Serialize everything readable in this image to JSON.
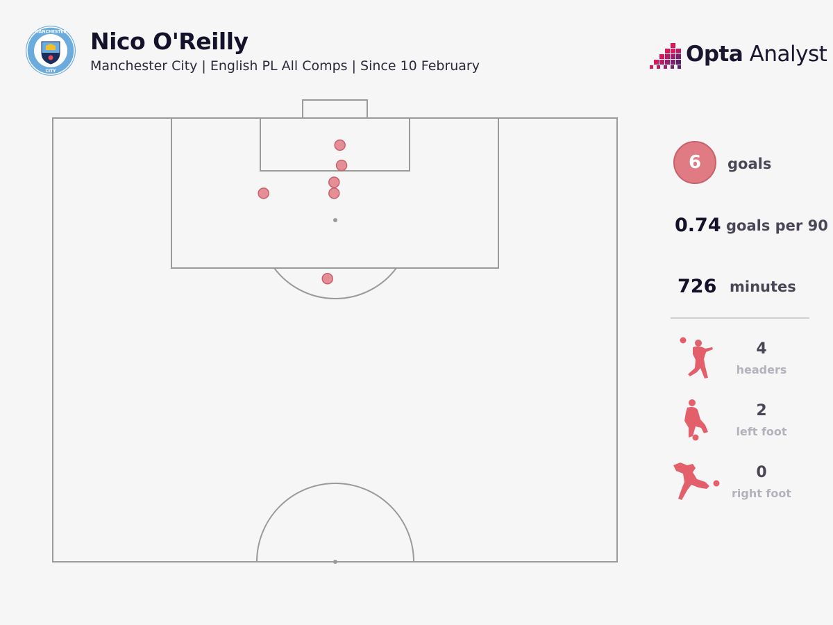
{
  "header": {
    "title": "Nico O'Reilly",
    "subtitle": "Manchester City | English PL All Comps | Since 10 February",
    "crest_text_top": "MANCHESTER",
    "crest_text_bottom": "CITY",
    "brand_bold": "Opta",
    "brand_light": " Analyst"
  },
  "stats": {
    "goals_value": "6",
    "goals_label": "goals",
    "per90_value": "0.74",
    "per90_label": "goals per 90",
    "minutes_value": "726",
    "minutes_label": "minutes",
    "breakdown": [
      {
        "value": "4",
        "label": "headers",
        "icon": "header-icon"
      },
      {
        "value": "2",
        "label": "left foot",
        "icon": "left-foot-icon"
      },
      {
        "value": "0",
        "label": "right foot",
        "icon": "right-foot-icon"
      }
    ]
  },
  "colors": {
    "shot_fill": "#e07b84",
    "shot_stroke": "#c9606b",
    "pitch_line": "#9a9a9a",
    "brand_pink": "#d8195c",
    "brand_purple": "#6b1f73"
  },
  "chart_data": {
    "type": "scatter",
    "title": "Nico O'Reilly",
    "description_units": "pitch coordinates in metres: x = distance from left touchline (0-68), y = distance from goal line (0-52.5, half pitch)",
    "x": [
      34.6,
      34.8,
      33.9,
      33.9,
      25.4,
      33.1
    ],
    "y": [
      3.2,
      5.6,
      7.6,
      8.9,
      8.9,
      19.0
    ],
    "xlim": [
      0,
      68
    ],
    "ylim": [
      0,
      52.5
    ],
    "grid": false
  }
}
